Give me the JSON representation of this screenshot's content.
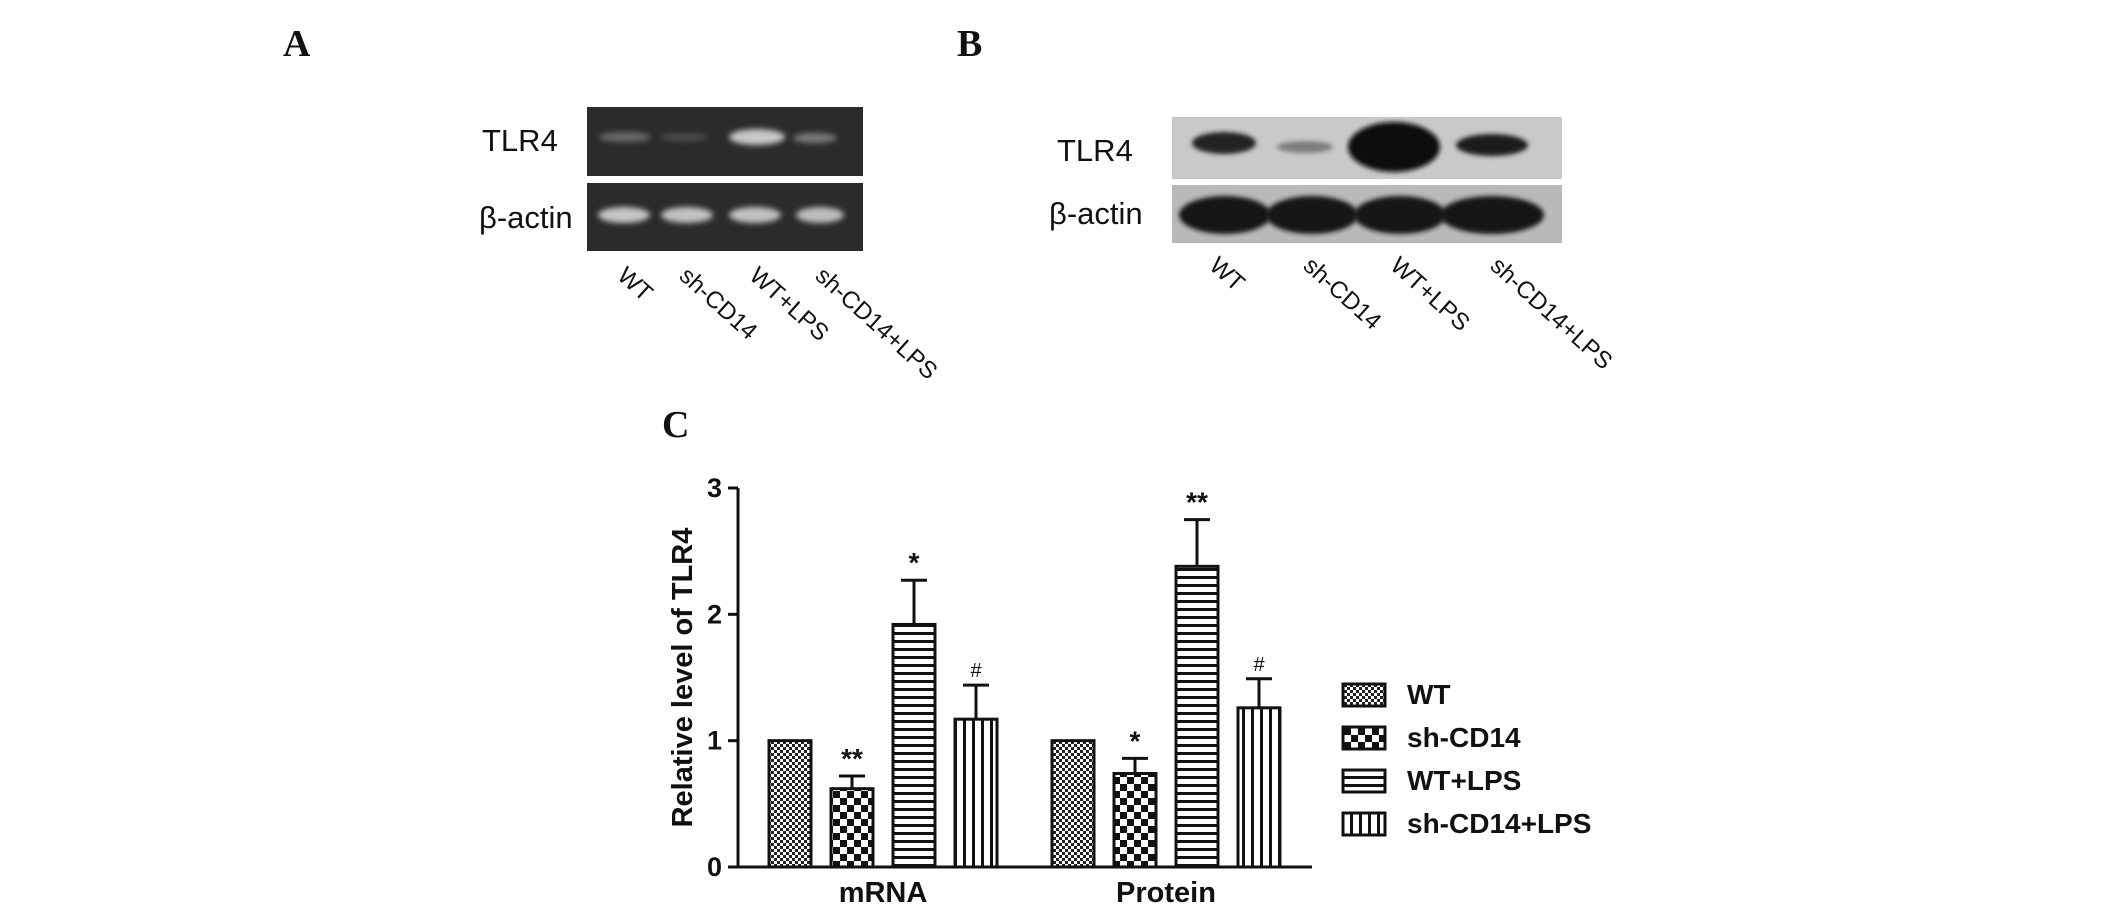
{
  "panels": {
    "a": {
      "letter": "A",
      "rows": [
        "TLR4",
        "β-actin"
      ],
      "lanes": [
        "WT",
        "sh-CD14",
        "WT+LPS",
        "sh-CD14+LPS"
      ]
    },
    "b": {
      "letter": "B",
      "rows": [
        "TLR4",
        "β-actin"
      ],
      "lanes": [
        "WT",
        "sh-CD14",
        "WT+LPS",
        "sh-CD14+LPS"
      ]
    },
    "c": {
      "letter": "C"
    }
  },
  "chart_data": {
    "type": "bar",
    "categories": [
      "mRNA",
      "Protein"
    ],
    "series": [
      {
        "name": "WT",
        "values": [
          1.0,
          1.0
        ],
        "errors": [
          0,
          0
        ],
        "marks": [
          "",
          ""
        ],
        "pattern": "fine-check"
      },
      {
        "name": "sh-CD14",
        "values": [
          0.62,
          0.74
        ],
        "errors": [
          0.1,
          0.12
        ],
        "marks": [
          "**",
          "*"
        ],
        "pattern": "coarse-check"
      },
      {
        "name": "WT+LPS",
        "values": [
          1.92,
          2.38
        ],
        "errors": [
          0.35,
          0.37
        ],
        "marks": [
          "*",
          "**"
        ],
        "pattern": "horizontal-lines"
      },
      {
        "name": "sh-CD14+LPS",
        "values": [
          1.17,
          1.26
        ],
        "errors": [
          0.27,
          0.23
        ],
        "marks": [
          "#",
          "#"
        ],
        "pattern": "vertical-lines"
      }
    ],
    "ylabel": "Relative level of TLR4",
    "xlabel": "",
    "ylim": [
      0,
      3
    ],
    "yticks": [
      "0",
      "1",
      "2",
      "3"
    ],
    "grid": false,
    "legend_position": "right"
  }
}
